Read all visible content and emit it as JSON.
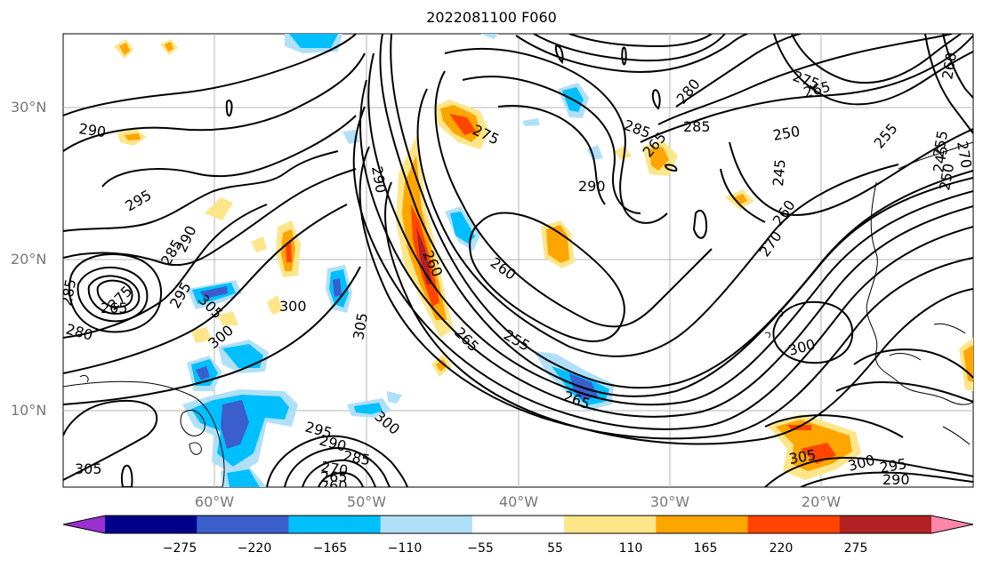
{
  "title": "2022081100 F060",
  "lat_labels": [
    "30°N",
    "20°N",
    "10°N"
  ],
  "lon_labels": [
    "60°W",
    "50°W",
    "40°W",
    "30°W",
    "20°W"
  ],
  "colorbar": {
    "ticks": [
      "−275",
      "−220",
      "−165",
      "−110",
      "−55",
      "55",
      "110",
      "165",
      "220",
      "275"
    ],
    "colors": [
      "#9b30d0",
      "#00008b",
      "#3a5fcd",
      "#00bfff",
      "#b0e0f8",
      "#ffffff",
      "#fde68a",
      "#ffa500",
      "#ff4500",
      "#b22222",
      "#ff88aa"
    ]
  },
  "contour_labels": [
    "290",
    "295",
    "285",
    "290",
    "285",
    "295",
    "265",
    "275",
    "280",
    "305",
    "300",
    "300",
    "305",
    "290",
    "260",
    "275",
    "265",
    "260",
    "255",
    "265",
    "285",
    "285",
    "280",
    "265",
    "290",
    "270",
    "275",
    "265",
    "260",
    "250",
    "245",
    "255",
    "245",
    "250",
    "255",
    "260",
    "270",
    "300",
    "305",
    "300",
    "295",
    "290",
    "295",
    "290",
    "300",
    "285",
    "270",
    "265",
    "260",
    "305"
  ]
}
